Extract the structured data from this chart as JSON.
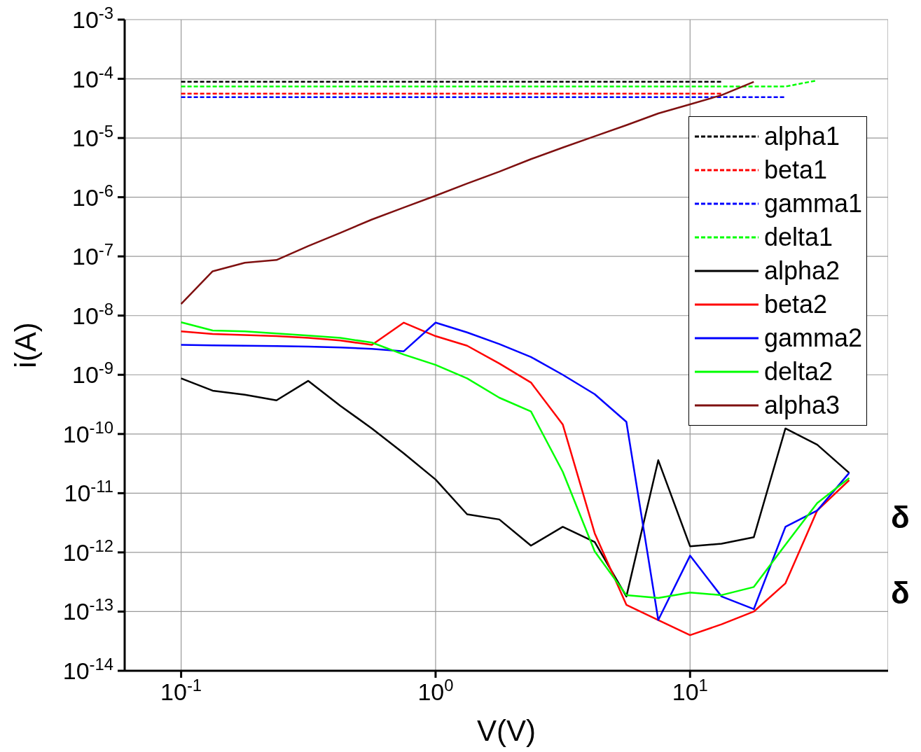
{
  "chart_data": {
    "type": "line",
    "xlabel": "V(V)",
    "ylabel": "i(A)",
    "log": "xy",
    "grid": true,
    "legend": "top right",
    "xlim": [
      0.06,
      60
    ],
    "ylim": [
      1e-14,
      0.001
    ],
    "xticks": [
      {
        "value": 0.1,
        "label": "10$^{-1}$"
      },
      {
        "value": 1,
        "label": "10$^{0}$"
      },
      {
        "value": 10,
        "label": "10$^{1}$"
      }
    ],
    "yticks": [
      {
        "value": 1e-14,
        "label": "10$^{-14}$"
      },
      {
        "value": 1e-13,
        "label": "10$^{-13}$"
      },
      {
        "value": 1e-12,
        "label": "10$^{-12}$"
      },
      {
        "value": 1e-11,
        "label": "10$^{-11}$"
      },
      {
        "value": 1e-10,
        "label": "10$^{-10}$"
      },
      {
        "value": 1e-09,
        "label": "10$^{-9}$"
      },
      {
        "value": 1e-08,
        "label": "10$^{-8}$"
      },
      {
        "value": 1e-07,
        "label": "10$^{-7}$"
      },
      {
        "value": 1e-06,
        "label": "10$^{-6}$"
      },
      {
        "value": 1e-05,
        "label": "10$^{-5}$"
      },
      {
        "value": 0.0001,
        "label": "10$^{-4}$"
      },
      {
        "value": 0.001,
        "label": "10$^{-3}$"
      }
    ],
    "x": [
      0.1,
      0.133,
      0.178,
      0.237,
      0.316,
      0.422,
      0.562,
      0.75,
      1,
      1.33,
      1.78,
      2.37,
      3.16,
      4.22,
      5.62,
      7.5,
      10,
      13.3,
      17.8,
      23.7,
      31.6,
      42.2
    ],
    "series": [
      {
        "name": "alpha1",
        "color": "#000000",
        "line_style": "dashed",
        "x": [
          0.1,
          13.3
        ],
        "values": [
          8.9e-05,
          8.9e-05
        ]
      },
      {
        "name": "beta1",
        "color": "#ff0000",
        "line_style": "dashed",
        "x": [
          0.1,
          13.3
        ],
        "values": [
          5.6e-05,
          5.6e-05
        ]
      },
      {
        "name": "gamma1",
        "color": "#0000ff",
        "line_style": "dashed",
        "x": [
          0.1,
          23.7
        ],
        "values": [
          4.9e-05,
          4.9e-05
        ]
      },
      {
        "name": "delta1",
        "color": "#00ff00",
        "line_style": "dashed",
        "x": [
          0.1,
          23.7,
          31.6
        ],
        "values": [
          7.4e-05,
          7.4e-05,
          9.4e-05
        ]
      },
      {
        "name": "alpha2",
        "color": "#000000",
        "line_style": "solid",
        "values": [
          8.7e-10,
          5.4e-10,
          4.6e-10,
          3.7e-10,
          7.9e-10,
          3e-10,
          1.24e-10,
          4.7e-11,
          1.7e-11,
          4.4e-12,
          3.6e-12,
          1.3e-12,
          2.7e-12,
          1.5e-12,
          1.8e-13,
          3.6e-11,
          1.27e-12,
          1.4e-12,
          1.8e-12,
          1.24e-10,
          6.6e-11,
          2.2e-11
        ]
      },
      {
        "name": "beta2",
        "color": "#ff0000",
        "line_style": "solid",
        "values": [
          5.4e-09,
          4.9e-09,
          4.7e-09,
          4.5e-09,
          4.2e-09,
          3.8e-09,
          3.2e-09,
          7.6e-09,
          4.5e-09,
          3.1e-09,
          1.55e-09,
          7.4e-10,
          1.45e-10,
          2.1e-12,
          1.3e-13,
          7.2e-14,
          4e-14,
          6.1e-14,
          1e-13,
          3e-13,
          5.1e-12,
          1.66e-11
        ]
      },
      {
        "name": "gamma2",
        "color": "#0000ff",
        "line_style": "solid",
        "values": [
          3.2e-09,
          3.15e-09,
          3.1e-09,
          3.05e-09,
          3e-09,
          2.9e-09,
          2.75e-09,
          2.5e-09,
          7.6e-09,
          5.2e-09,
          3.3e-09,
          2e-09,
          1e-09,
          4.7e-10,
          1.6e-10,
          7.2e-14,
          8.8e-13,
          1.8e-13,
          1.1e-13,
          2.7e-12,
          5.1e-12,
          2.2e-11
        ]
      },
      {
        "name": "delta2",
        "color": "#00ff00",
        "line_style": "solid",
        "values": [
          7.7e-09,
          5.6e-09,
          5.4e-09,
          5e-09,
          4.6e-09,
          4.2e-09,
          3.5e-09,
          2.2e-09,
          1.47e-09,
          8.7e-10,
          4.1e-10,
          2.4e-10,
          2.3e-11,
          1.04e-12,
          1.9e-13,
          1.7e-13,
          2.1e-13,
          1.9e-13,
          2.6e-13,
          1.35e-12,
          6.8e-12,
          1.8e-11
        ]
      },
      {
        "name": "alpha3",
        "color": "#7f1010",
        "line_style": "solid",
        "x": [
          0.1,
          0.133,
          0.178,
          0.237,
          0.316,
          0.422,
          0.562,
          0.75,
          1,
          1.33,
          1.78,
          2.37,
          3.16,
          4.22,
          5.62,
          7.5,
          10,
          13.3,
          17.8
        ],
        "values": [
          1.57e-08,
          5.6e-08,
          7.8e-08,
          8.7e-08,
          1.5e-07,
          2.5e-07,
          4.2e-07,
          6.7e-07,
          1.06e-06,
          1.7e-06,
          2.7e-06,
          4.4e-06,
          6.9e-06,
          1.07e-05,
          1.65e-05,
          2.6e-05,
          3.7e-05,
          5.3e-05,
          8.9e-05
        ]
      }
    ],
    "annotations": [
      "δ",
      "δ"
    ]
  }
}
